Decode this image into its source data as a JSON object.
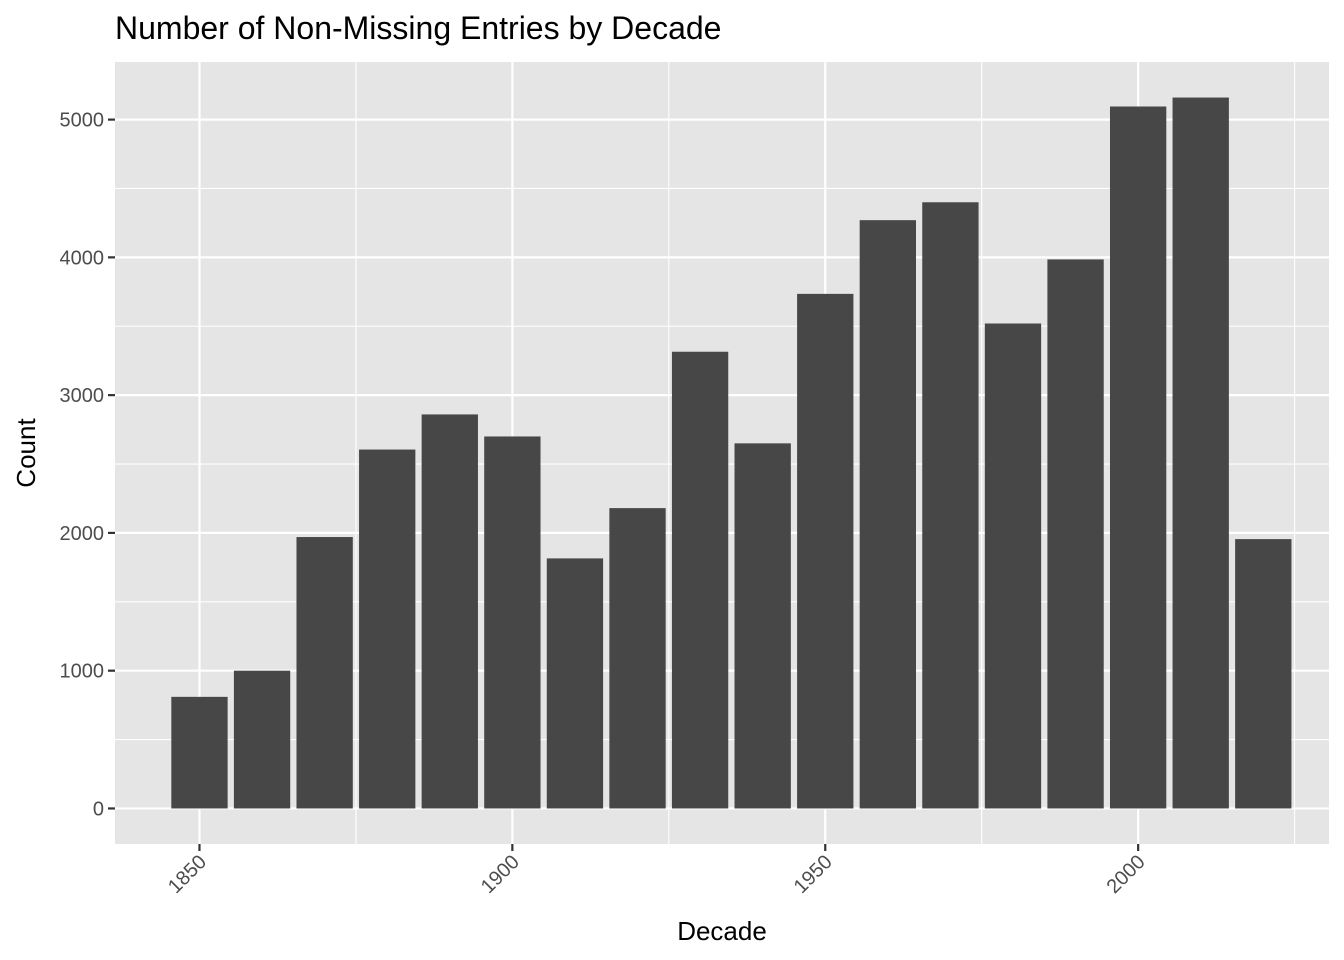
{
  "chart_data": {
    "type": "bar",
    "title": "Number of Non-Missing Entries by Decade",
    "xlabel": "Decade",
    "ylabel": "Count",
    "x": [
      1850,
      1860,
      1870,
      1880,
      1890,
      1900,
      1910,
      1920,
      1930,
      1940,
      1950,
      1960,
      1970,
      1980,
      1990,
      2000,
      2010,
      2020
    ],
    "values": [
      810,
      1000,
      1970,
      2605,
      2860,
      2700,
      1815,
      2180,
      3315,
      2650,
      3735,
      4270,
      4400,
      3520,
      3985,
      5095,
      5160,
      1955
    ],
    "xlim": [
      1836.5,
      2030.5
    ],
    "ylim": [
      -258,
      5418
    ],
    "xticks": [
      1850,
      1900,
      1950,
      2000
    ],
    "xtick_labels": [
      "1850",
      "1900",
      "1950",
      "2000"
    ],
    "yticks": [
      0,
      1000,
      2000,
      3000,
      4000,
      5000
    ],
    "ytick_labels": [
      "0",
      "1000",
      "2000",
      "3000",
      "4000",
      "5000"
    ],
    "grid": true,
    "legend": "none",
    "colors": {
      "bar": "#474747",
      "panel": "#e5e5e5",
      "grid": "#ffffff",
      "tick": "#333333"
    }
  }
}
